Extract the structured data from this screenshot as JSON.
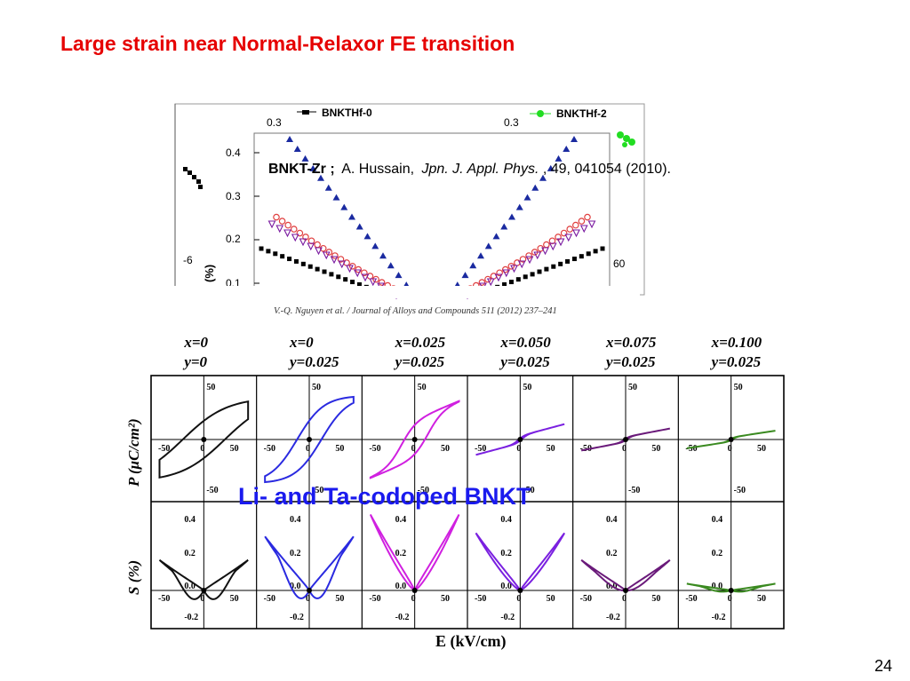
{
  "slide": {
    "title": "Large strain near Normal-Relaxor FE transition",
    "page_number": "24",
    "overlay_label": "Li- and Ta-codoped BNKT"
  },
  "top_figure": {
    "citation_bold": "BNKT-Zr ;",
    "citation_rest": "A. Hussain, Jpn. J. Appl. Phys., 49, 041054 (2010).",
    "citation_authors": "A. Hussain,",
    "citation_journal": "Jpn. J. Appl. Phys.",
    "citation_tail": ", 49, 041054 (2010).",
    "legend_left": "BNKTHf-0",
    "legend_right": "BNKTHf-2",
    "y_ticks": [
      "0.4",
      "0.3",
      "0.2",
      "0.1"
    ],
    "y_label": "(%)",
    "bg_left_tick": "0.3",
    "bg_right_tick": "0.3",
    "bg_left_x": "-6",
    "bg_right_x": "60",
    "journal_line": "V.-Q. Nguyen et al. / Journal of Alloys and Compounds 511 (2012) 237–241"
  },
  "bottom_figure": {
    "columns": [
      {
        "x": "x=0",
        "y": "y=0",
        "color": "#111111"
      },
      {
        "x": "x=0",
        "y": "y=0.025",
        "color": "#2a2ae0"
      },
      {
        "x": "x=0.025",
        "y": "y=0.025",
        "color": "#d020e0"
      },
      {
        "x": "x=0.050",
        "y": "y=0.025",
        "color": "#7a20e0"
      },
      {
        "x": "x=0.075",
        "y": "y=0.025",
        "color": "#6a1a7a"
      },
      {
        "x": "x=0.100",
        "y": "y=0.025",
        "color": "#3a8a20"
      }
    ],
    "p_axis_label": "P (μC/cm²)",
    "s_axis_label": "S (%)",
    "x_axis_label": "E (kV/cm)",
    "p_ticks": [
      "50",
      "-50"
    ],
    "p_x_ticks": [
      "-50",
      "0",
      "50"
    ],
    "s_ticks": [
      "0.4",
      "0.2",
      "0.0",
      "-0.2"
    ],
    "s_x_ticks": [
      "-50",
      "0",
      "50"
    ]
  }
}
